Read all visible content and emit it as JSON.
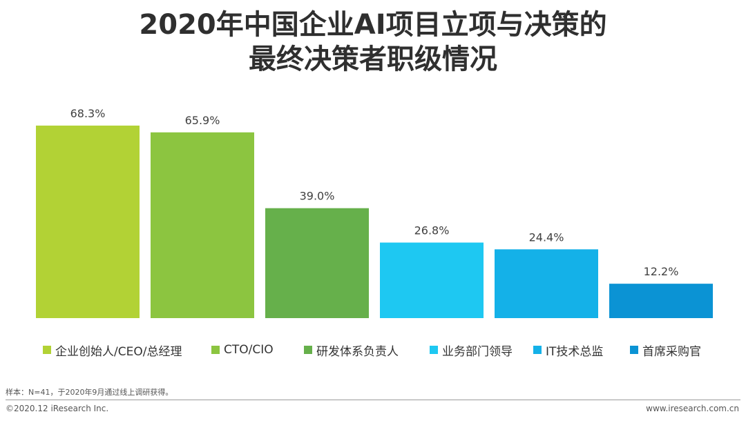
{
  "title_line1": "2020年中国企业AI项目立项与决策的",
  "title_line2": "最终决策者职级情况",
  "chart_data": {
    "type": "bar",
    "categories": [
      "企业创始人/CEO/总经理",
      "CTO/CIO",
      "研发体系负责人",
      "业务部门领导",
      "IT技术总监",
      "首席采购官"
    ],
    "values": [
      68.3,
      65.9,
      39.0,
      26.8,
      24.4,
      12.2
    ],
    "value_labels": [
      "68.3%",
      "65.9%",
      "39.0%",
      "26.8%",
      "24.4%",
      "12.2%"
    ],
    "colors": [
      "#b2d235",
      "#8cc540",
      "#66b04b",
      "#1ec8f2",
      "#14b1e8",
      "#0b93d4"
    ],
    "ylim": [
      0,
      70
    ],
    "legend_position": "bottom",
    "grid": false
  },
  "note": "样本：N=41，于2020年9月通过线上调研获得。",
  "footer_left": "©2020.12 iResearch Inc.",
  "footer_right": "www.iresearch.com.cn"
}
